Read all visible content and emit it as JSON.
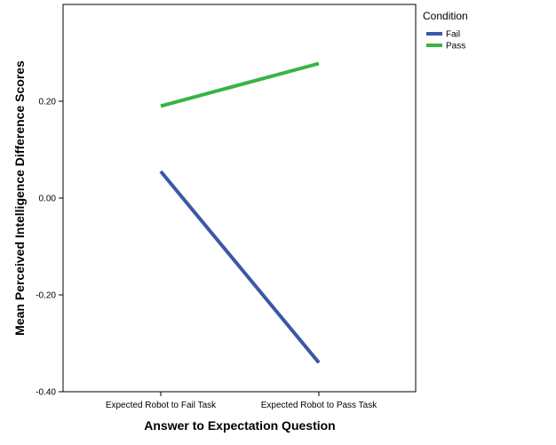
{
  "chart_data": {
    "type": "line",
    "categories": [
      "Expected Robot to Fail Task",
      "Expected Robot to Pass Task"
    ],
    "series": [
      {
        "name": "Fail",
        "values": [
          0.055,
          -0.34
        ],
        "color": "#3a58a6"
      },
      {
        "name": "Pass",
        "values": [
          0.19,
          0.278
        ],
        "color": "#36b446"
      }
    ],
    "xlabel": "Answer to Expectation Question",
    "ylabel": "Mean Perceived Intelligence Difference Scores",
    "ylim": [
      -0.4,
      0.4
    ],
    "yticks": [
      "-0.40",
      "-0.20",
      "0.00",
      "0.20"
    ],
    "ytick_values": [
      -0.4,
      -0.2,
      0.0,
      0.2
    ],
    "legend": {
      "title": "Condition",
      "placement": "top-right, outside plot"
    },
    "grid": false
  }
}
